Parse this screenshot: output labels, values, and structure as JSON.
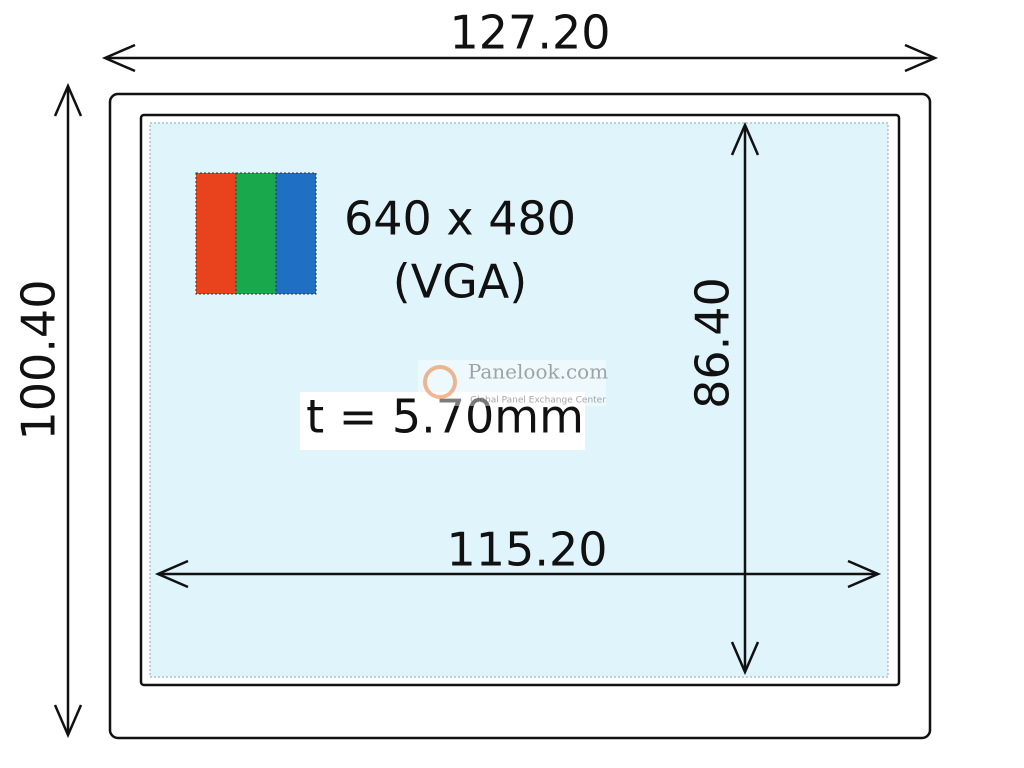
{
  "dimensions": {
    "outer_width": "127.20",
    "outer_height": "100.40",
    "active_height": "86.40",
    "active_width": "115.20"
  },
  "resolution": {
    "pixels": "640 x 480",
    "name": "(VGA)"
  },
  "thickness": "t = 5.70mm",
  "watermark": {
    "site": "Panelook.com",
    "tagline": "Global Panel Exchange Center"
  }
}
